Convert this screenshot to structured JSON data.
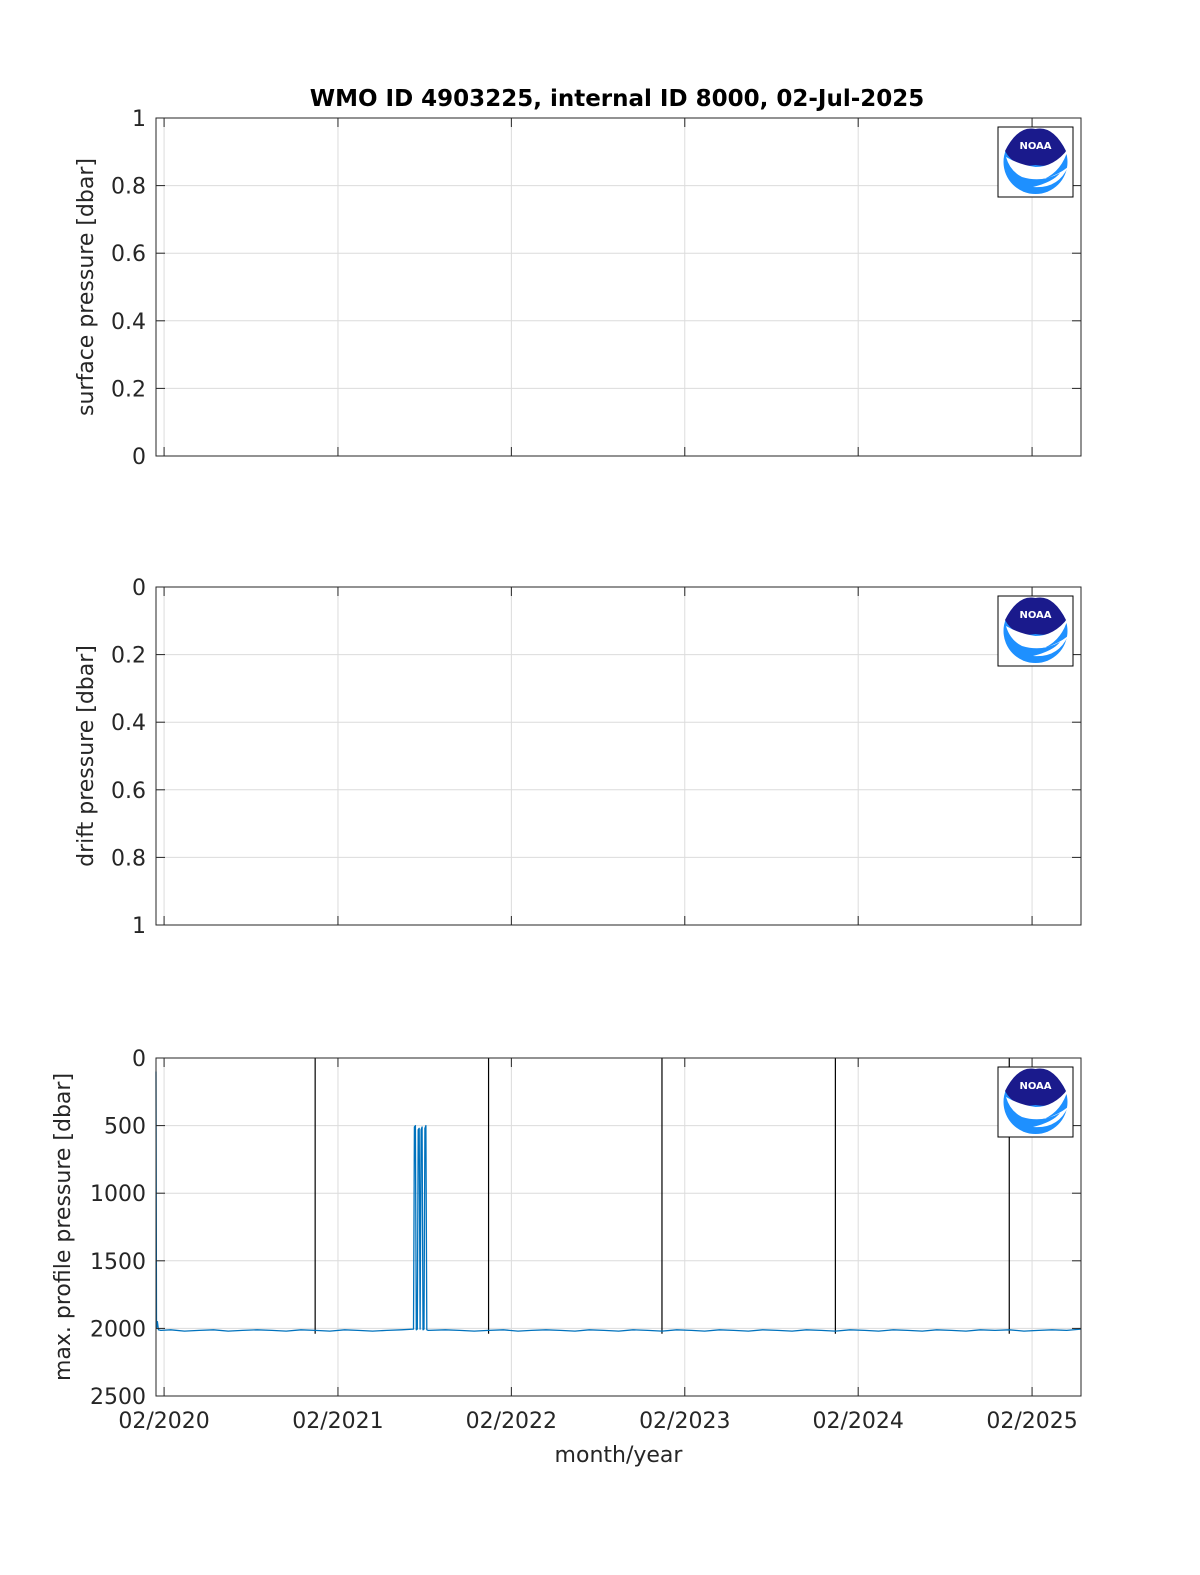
{
  "title": "WMO ID 4903225, internal ID 8000, 02-Jul-2025",
  "colors": {
    "series": "#0072BD",
    "marker": "#000000",
    "grid": "#dcdcdc",
    "axis": "#262626",
    "noaa_dark": "#1a1a8c",
    "noaa_light": "#1e90ff"
  },
  "logo": {
    "name": "noaa-logo",
    "text": "NOAA"
  },
  "chart_data": [
    {
      "type": "line",
      "ylabel": "surface pressure [dbar]",
      "xlabel": "",
      "ylim": [
        0,
        1
      ],
      "yreverse": false,
      "yticks": [
        0,
        0.2,
        0.4,
        0.6,
        0.8,
        1
      ],
      "yticklabels": [
        "0",
        "0.2",
        "0.4",
        "0.6",
        "0.8",
        "1"
      ],
      "xlim": [
        "2020-01-15",
        "2025-05-15"
      ],
      "xticks": [
        "2020-02-01",
        "2021-02-01",
        "2022-02-01",
        "2023-02-01",
        "2024-02-01",
        "2025-02-01"
      ],
      "xticklabels": [],
      "grid": true,
      "series": []
    },
    {
      "type": "line",
      "ylabel": "drift pressure [dbar]",
      "xlabel": "",
      "ylim": [
        0,
        1
      ],
      "yreverse": true,
      "yticks": [
        0,
        0.2,
        0.4,
        0.6,
        0.8,
        1
      ],
      "yticklabels": [
        "0",
        "0.2",
        "0.4",
        "0.6",
        "0.8",
        "1"
      ],
      "xlim": [
        "2020-01-15",
        "2025-05-15"
      ],
      "xticks": [
        "2020-02-01",
        "2021-02-01",
        "2022-02-01",
        "2023-02-01",
        "2024-02-01",
        "2025-02-01"
      ],
      "xticklabels": [],
      "grid": true,
      "series": []
    },
    {
      "type": "line",
      "ylabel": "max. profile pressure [dbar]",
      "xlabel": "month/year",
      "ylim": [
        0,
        2500
      ],
      "yreverse": true,
      "yticks": [
        0,
        500,
        1000,
        1500,
        2000,
        2500
      ],
      "yticklabels": [
        "0",
        "500",
        "1000",
        "1500",
        "2000",
        "2500"
      ],
      "xlim": [
        "2020-01-15",
        "2025-05-15"
      ],
      "xticks": [
        "2020-02-01",
        "2021-02-01",
        "2022-02-01",
        "2023-02-01",
        "2024-02-01",
        "2025-02-01"
      ],
      "xticklabels": [
        "02/2020",
        "02/2021",
        "02/2022",
        "02/2023",
        "02/2024",
        "02/2025"
      ],
      "grid": true,
      "markers": [
        "2020-12-15",
        "2021-12-15",
        "2022-12-15",
        "2023-12-15",
        "2024-12-15"
      ],
      "series": [
        {
          "x": [
            "2020-01-15",
            "2020-01-16",
            "2020-01-18",
            "2020-01-20",
            "2020-01-25",
            "2020-02-15",
            "2020-03-15",
            "2020-04-15",
            "2020-05-15",
            "2020-06-15",
            "2020-07-15",
            "2020-08-15",
            "2020-09-15",
            "2020-10-15",
            "2020-11-15",
            "2020-12-15",
            "2021-01-15",
            "2021-02-15",
            "2021-03-15",
            "2021-04-15",
            "2021-05-15",
            "2021-06-15",
            "2021-07-10",
            "2021-07-12",
            "2021-07-14",
            "2021-07-16",
            "2021-07-18",
            "2021-07-20",
            "2021-07-22",
            "2021-07-24",
            "2021-07-26",
            "2021-07-28",
            "2021-07-30",
            "2021-08-01",
            "2021-08-03",
            "2021-08-05",
            "2021-08-07",
            "2021-08-10",
            "2021-09-15",
            "2021-10-15",
            "2021-11-15",
            "2021-12-15",
            "2022-01-15",
            "2022-02-15",
            "2022-03-15",
            "2022-04-15",
            "2022-05-15",
            "2022-06-15",
            "2022-07-15",
            "2022-08-15",
            "2022-09-15",
            "2022-10-15",
            "2022-11-15",
            "2022-12-15",
            "2023-01-15",
            "2023-02-15",
            "2023-03-15",
            "2023-04-15",
            "2023-05-15",
            "2023-06-15",
            "2023-07-15",
            "2023-08-15",
            "2023-09-15",
            "2023-10-15",
            "2023-11-15",
            "2023-12-15",
            "2024-01-15",
            "2024-02-15",
            "2024-03-15",
            "2024-04-15",
            "2024-05-15",
            "2024-06-15",
            "2024-07-15",
            "2024-08-15",
            "2024-09-15",
            "2024-10-15",
            "2024-11-15",
            "2024-12-15",
            "2025-01-15",
            "2025-02-15",
            "2025-03-15",
            "2025-04-15",
            "2025-05-15"
          ],
          "y": [
            100,
            2000,
            1950,
            2010,
            2015,
            2010,
            2020,
            2015,
            2010,
            2020,
            2015,
            2010,
            2015,
            2020,
            2010,
            2015,
            2020,
            2010,
            2015,
            2020,
            2015,
            2010,
            2005,
            510,
            500,
            2010,
            2005,
            530,
            520,
            2005,
            530,
            510,
            2010,
            2005,
            520,
            500,
            2010,
            2015,
            2010,
            2015,
            2020,
            2015,
            2010,
            2020,
            2015,
            2010,
            2015,
            2020,
            2010,
            2015,
            2020,
            2010,
            2015,
            2020,
            2010,
            2015,
            2020,
            2010,
            2015,
            2020,
            2010,
            2015,
            2020,
            2010,
            2015,
            2020,
            2010,
            2015,
            2020,
            2010,
            2015,
            2020,
            2010,
            2015,
            2020,
            2010,
            2015,
            2010,
            2020,
            2015,
            2010,
            2015,
            2005
          ]
        }
      ]
    }
  ]
}
